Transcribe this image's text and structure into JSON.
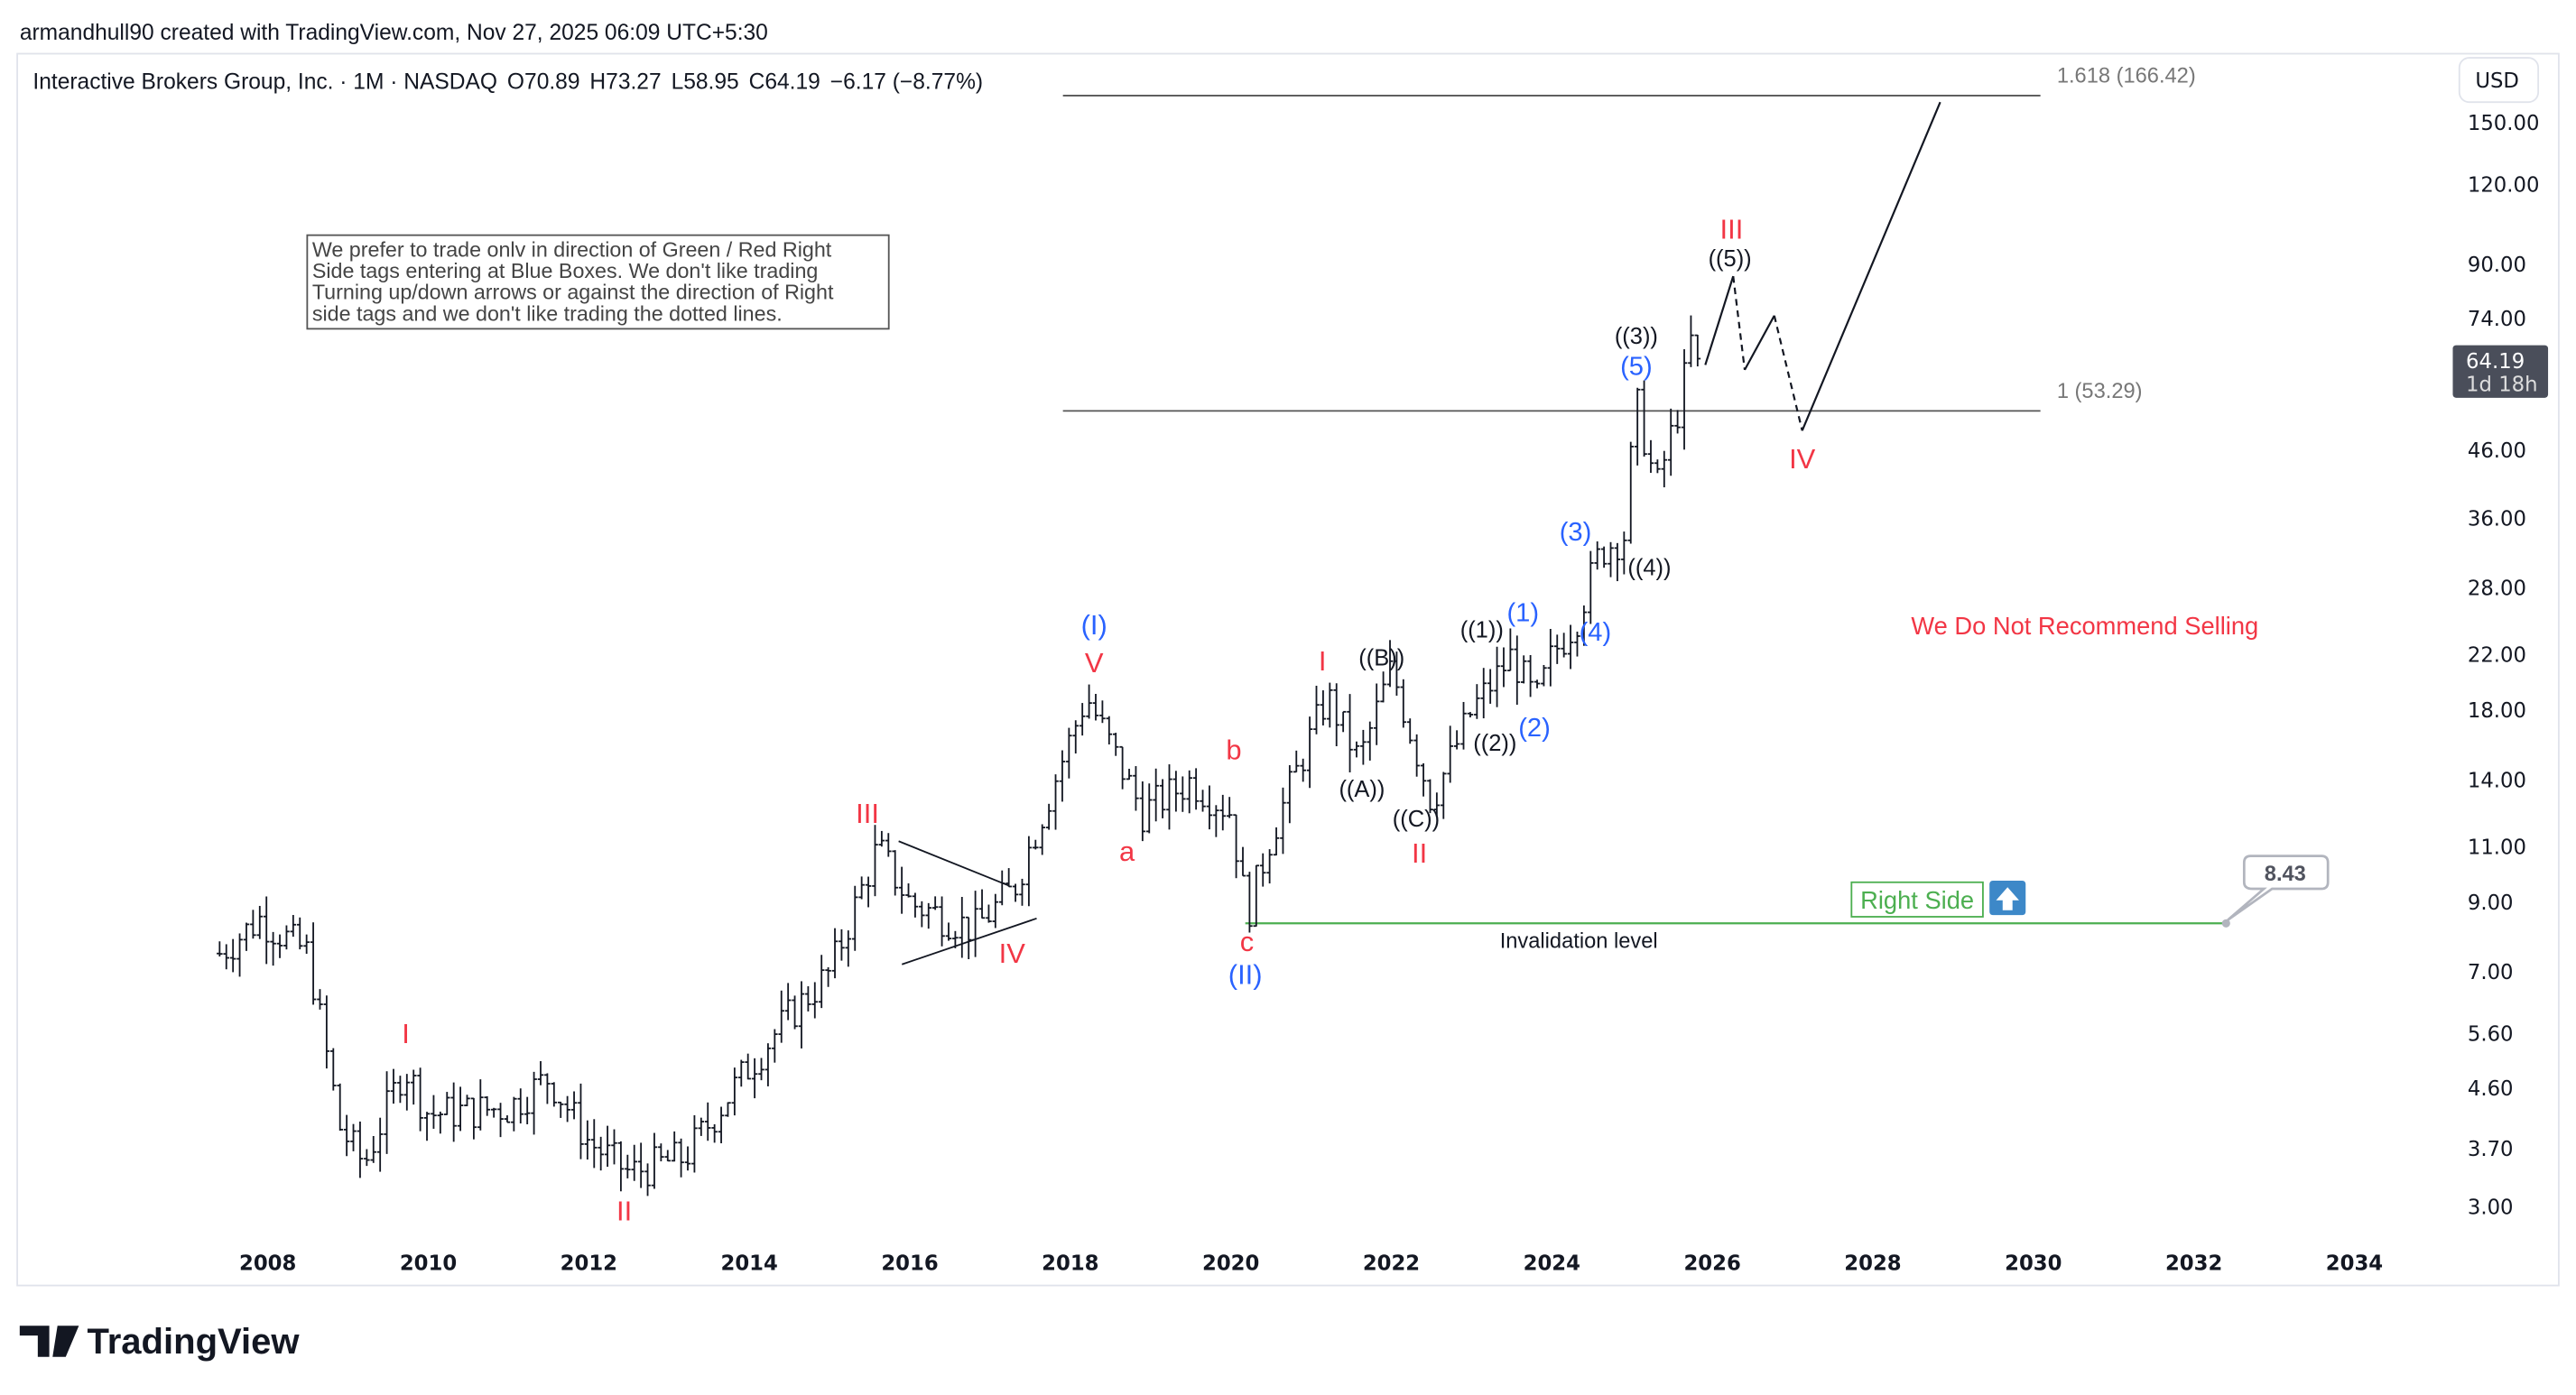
{
  "header": {
    "credit": "armandhull90 created with TradingView.com, Nov 27, 2025 06:09 UTC+5:30",
    "symbol": "Interactive Brokers Group, Inc. · 1M · NASDAQ",
    "open": "O70.89",
    "high": "H73.27",
    "low": "L58.95",
    "close": "C64.19",
    "change": "−6.17 (−8.77%)"
  },
  "currency": "USD",
  "note": [
    "We prefer to trade onlv in direction of Green / Red Right",
    "Side tags entering at Blue Boxes. We don't like trading",
    "Turning up/down arrows or against the direction of Right",
    "side tags and we don't like trading the dotted lines."
  ],
  "fib": {
    "upper": "1.618 (166.42)",
    "lower": "1 (53.29)"
  },
  "last_price": {
    "value": "64.19",
    "countdown": "1d 18h"
  },
  "recommendation": "We Do Not Recommend Selling",
  "right_side": {
    "label": "Right Side",
    "arrow": "arrow-up-icon"
  },
  "invalidation": {
    "label": "Invalidation level",
    "price": "8.43"
  },
  "waves": {
    "w1_I": "I",
    "w1_II": "II",
    "w1_III": "III",
    "w1_IV": "IV",
    "w1_V": "V",
    "cycle_I": "(I)",
    "a": "a",
    "b": "b",
    "c": "c",
    "cycle_II": "(II)",
    "w2_I": "I",
    "w2_II": "II",
    "A": "((A))",
    "B": "((B))",
    "C": "((C))",
    "m1": "((1))",
    "m2": "((2))",
    "s1": "(1)",
    "s2": "(2)",
    "s3": "(3)",
    "s4": "(4)",
    "m3": "((3))",
    "s5": "(5)",
    "m4": "((4))",
    "m5": "((5))",
    "w2_III": "III",
    "w2_IV": "IV"
  },
  "colors": {
    "red": "#f23645",
    "blue": "#2962ff",
    "green": "#4caf50",
    "bar": "#131722",
    "arrow_box": "#3d88c8"
  },
  "logo": "TradingView",
  "chart_data": {
    "type": "ohlc-bar",
    "scale": "log",
    "ylim": [
      2.8,
      175
    ],
    "xlim": [
      2007,
      2035
    ],
    "x_ticks": [
      "2008",
      "2010",
      "2012",
      "2014",
      "2016",
      "2018",
      "2020",
      "2022",
      "2024",
      "2026",
      "2028",
      "2030",
      "2032",
      "2034"
    ],
    "y_ticks": [
      "150.00",
      "120.00",
      "90.00",
      "74.00",
      "46.00",
      "36.00",
      "28.00",
      "22.00",
      "18.00",
      "14.00",
      "11.00",
      "9.00",
      "7.00",
      "5.60",
      "4.60",
      "3.70",
      "3.00"
    ],
    "price_path_approx": [
      [
        2007.4,
        7.5
      ],
      [
        2007.9,
        8.5
      ],
      [
        2008.5,
        7.5
      ],
      [
        2008.9,
        4.0
      ],
      [
        2009.2,
        3.5
      ],
      [
        2009.7,
        5.0
      ],
      [
        2010.0,
        4.2
      ],
      [
        2011.0,
        4.3
      ],
      [
        2011.5,
        4.8
      ],
      [
        2012.0,
        3.8
      ],
      [
        2012.5,
        3.4
      ],
      [
        2013.2,
        3.6
      ],
      [
        2014.0,
        5.0
      ],
      [
        2014.5,
        6.0
      ],
      [
        2015.0,
        7.0
      ],
      [
        2015.6,
        11
      ],
      [
        2016.0,
        9
      ],
      [
        2016.8,
        8.2
      ],
      [
        2017.3,
        9.5
      ],
      [
        2018.2,
        19
      ],
      [
        2018.9,
        12.5
      ],
      [
        2019.5,
        14
      ],
      [
        2020.0,
        12.5
      ],
      [
        2020.2,
        8.6
      ],
      [
        2020.5,
        11.5
      ],
      [
        2021.2,
        19
      ],
      [
        2021.6,
        15
      ],
      [
        2022.0,
        21
      ],
      [
        2022.5,
        13
      ],
      [
        2023.0,
        18
      ],
      [
        2023.5,
        22
      ],
      [
        2023.8,
        18.5
      ],
      [
        2024.0,
        22
      ],
      [
        2024.3,
        25
      ],
      [
        2024.6,
        32
      ],
      [
        2024.9,
        34
      ],
      [
        2025.05,
        55
      ],
      [
        2025.3,
        40
      ],
      [
        2025.6,
        55
      ],
      [
        2025.75,
        70
      ],
      [
        2025.83,
        64.19
      ]
    ],
    "fib_levels": [
      {
        "ratio": 1.618,
        "price": 166.42
      },
      {
        "ratio": 1,
        "price": 53.29
      }
    ],
    "invalidation_price": 8.43,
    "last_close": 64.19
  }
}
